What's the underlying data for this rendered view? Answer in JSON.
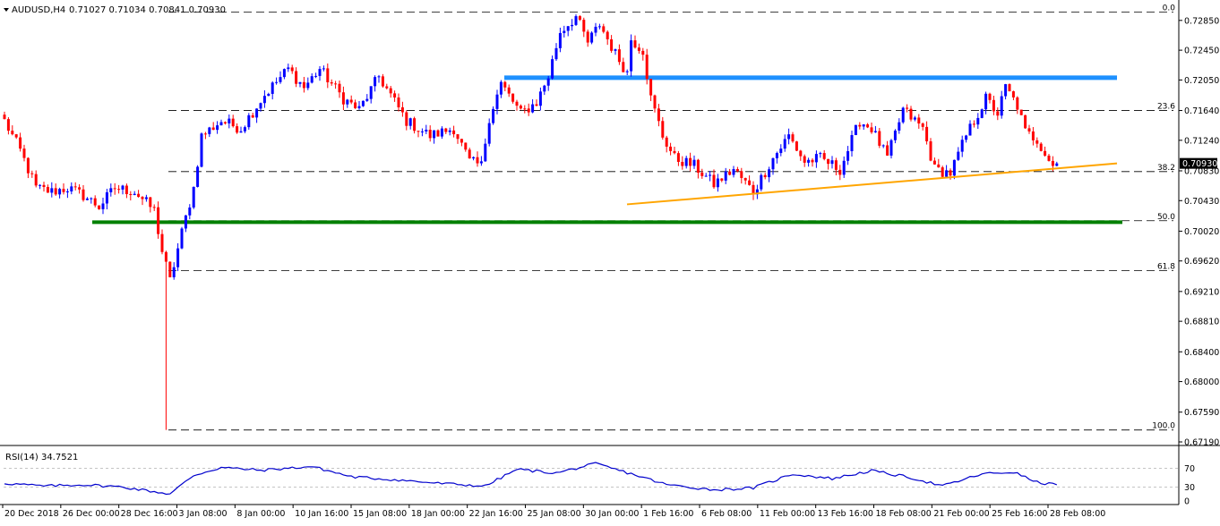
{
  "header": {
    "symbol": "AUDUSD,H4",
    "ohlc": "0.71027 0.71034 0.70841 0.70930"
  },
  "rsi_header": {
    "label": "RSI(14) 34.7521"
  },
  "colors": {
    "bull": "#0000ff",
    "bear": "#ff0000",
    "resistance_line": "#1e90ff",
    "support_line": "#008000",
    "trendline": "#ffa500",
    "rsi_line": "#0000cd",
    "price_label_bg": "#000000",
    "grid_dash": "#000000"
  },
  "chart_data": [
    {
      "type": "candlestick",
      "title": "AUDUSD,H4",
      "ylim": [
        0.6719,
        0.7304
      ],
      "y_ticks": [
        "0.72850",
        "0.72450",
        "0.72050",
        "0.71640",
        "0.71240",
        "0.70830",
        "0.70430",
        "0.70020",
        "0.69620",
        "0.69210",
        "0.68810",
        "0.68400",
        "0.68000",
        "0.67590",
        "0.67190"
      ],
      "x_labels": [
        "20 Dec 2018",
        "26 Dec 00:00",
        "28 Dec 16:00",
        "3 Jan 08:00",
        "8 Jan 00:00",
        "10 Jan 16:00",
        "15 Jan 08:00",
        "18 Jan 00:00",
        "22 Jan 16:00",
        "25 Jan 08:00",
        "30 Jan 00:00",
        "1 Feb 16:00",
        "6 Feb 08:00",
        "11 Feb 00:00",
        "13 Feb 16:00",
        "18 Feb 08:00",
        "21 Feb 00:00",
        "25 Feb 16:00",
        "28 Feb 08:00"
      ],
      "current_price_label": "0.70930",
      "fibonacci_levels": [
        {
          "label": "0.0",
          "price": 0.7296
        },
        {
          "label": "23.6",
          "price": 0.7164
        },
        {
          "label": "38.2",
          "price": 0.7082
        },
        {
          "label": "50.0",
          "price": 0.7016
        },
        {
          "label": "61.8",
          "price": 0.6949
        },
        {
          "label": "100.0",
          "price": 0.6735
        }
      ],
      "horizontal_lines": [
        {
          "name": "resistance",
          "price": 0.7208
        },
        {
          "name": "support",
          "price": 0.7014
        }
      ],
      "trendline": {
        "start": [
          0.7038
        ],
        "end": [
          0.7093
        ]
      },
      "anchors": [
        {
          "i": 0,
          "p": 0.715
        },
        {
          "i": 4,
          "p": 0.711
        },
        {
          "i": 8,
          "p": 0.706
        },
        {
          "i": 12,
          "p": 0.7055
        },
        {
          "i": 16,
          "p": 0.706
        },
        {
          "i": 20,
          "p": 0.705
        },
        {
          "i": 24,
          "p": 0.7035
        },
        {
          "i": 28,
          "p": 0.706
        },
        {
          "i": 33,
          "p": 0.7055
        },
        {
          "i": 38,
          "p": 0.703
        },
        {
          "i": 40,
          "p": 0.6975
        },
        {
          "i": 42,
          "p": 0.6935
        },
        {
          "i": 45,
          "p": 0.7
        },
        {
          "i": 48,
          "p": 0.706
        },
        {
          "i": 50,
          "p": 0.713
        },
        {
          "i": 55,
          "p": 0.715
        },
        {
          "i": 60,
          "p": 0.714
        },
        {
          "i": 66,
          "p": 0.7185
        },
        {
          "i": 72,
          "p": 0.722
        },
        {
          "i": 76,
          "p": 0.7195
        },
        {
          "i": 80,
          "p": 0.722
        },
        {
          "i": 86,
          "p": 0.718
        },
        {
          "i": 90,
          "p": 0.7165
        },
        {
          "i": 95,
          "p": 0.721
        },
        {
          "i": 102,
          "p": 0.715
        },
        {
          "i": 108,
          "p": 0.713
        },
        {
          "i": 114,
          "p": 0.714
        },
        {
          "i": 118,
          "p": 0.7095
        },
        {
          "i": 121,
          "p": 0.709
        },
        {
          "i": 123,
          "p": 0.7155
        },
        {
          "i": 126,
          "p": 0.72
        },
        {
          "i": 131,
          "p": 0.716
        },
        {
          "i": 135,
          "p": 0.7175
        },
        {
          "i": 138,
          "p": 0.721
        },
        {
          "i": 141,
          "p": 0.727
        },
        {
          "i": 145,
          "p": 0.729
        },
        {
          "i": 148,
          "p": 0.7255
        },
        {
          "i": 151,
          "p": 0.728
        },
        {
          "i": 155,
          "p": 0.724
        },
        {
          "i": 158,
          "p": 0.7215
        },
        {
          "i": 159,
          "p": 0.726
        },
        {
          "i": 162,
          "p": 0.7245
        },
        {
          "i": 164,
          "p": 0.718
        },
        {
          "i": 167,
          "p": 0.713
        },
        {
          "i": 170,
          "p": 0.71
        },
        {
          "i": 175,
          "p": 0.709
        },
        {
          "i": 180,
          "p": 0.7065
        },
        {
          "i": 185,
          "p": 0.7085
        },
        {
          "i": 190,
          "p": 0.7055
        },
        {
          "i": 195,
          "p": 0.71
        },
        {
          "i": 199,
          "p": 0.713
        },
        {
          "i": 203,
          "p": 0.7095
        },
        {
          "i": 207,
          "p": 0.71
        },
        {
          "i": 212,
          "p": 0.7085
        },
        {
          "i": 217,
          "p": 0.715
        },
        {
          "i": 220,
          "p": 0.714
        },
        {
          "i": 224,
          "p": 0.71
        },
        {
          "i": 228,
          "p": 0.7165
        },
        {
          "i": 233,
          "p": 0.714
        },
        {
          "i": 236,
          "p": 0.7085
        },
        {
          "i": 240,
          "p": 0.708
        },
        {
          "i": 244,
          "p": 0.713
        },
        {
          "i": 249,
          "p": 0.718
        },
        {
          "i": 252,
          "p": 0.716
        },
        {
          "i": 254,
          "p": 0.7195
        },
        {
          "i": 257,
          "p": 0.717
        },
        {
          "i": 259,
          "p": 0.7135
        },
        {
          "i": 262,
          "p": 0.7125
        },
        {
          "i": 266,
          "p": 0.709
        },
        {
          "i": 267,
          "p": 0.7093
        }
      ],
      "rsi": {
        "label": "RSI(14) 34.7521",
        "ylim": [
          0,
          100
        ],
        "levels": [
          70,
          30
        ],
        "tick_labels": [
          "70",
          "30",
          "0"
        ],
        "last_value": 34.7521,
        "anchors": [
          {
            "i": 0,
            "v": 38
          },
          {
            "i": 10,
            "v": 32
          },
          {
            "i": 20,
            "v": 35
          },
          {
            "i": 30,
            "v": 30
          },
          {
            "i": 42,
            "v": 15
          },
          {
            "i": 48,
            "v": 55
          },
          {
            "i": 55,
            "v": 72
          },
          {
            "i": 65,
            "v": 66
          },
          {
            "i": 78,
            "v": 74
          },
          {
            "i": 88,
            "v": 52
          },
          {
            "i": 100,
            "v": 45
          },
          {
            "i": 110,
            "v": 38
          },
          {
            "i": 122,
            "v": 32
          },
          {
            "i": 130,
            "v": 68
          },
          {
            "i": 140,
            "v": 60
          },
          {
            "i": 150,
            "v": 80
          },
          {
            "i": 160,
            "v": 56
          },
          {
            "i": 168,
            "v": 35
          },
          {
            "i": 180,
            "v": 24
          },
          {
            "i": 190,
            "v": 28
          },
          {
            "i": 200,
            "v": 58
          },
          {
            "i": 210,
            "v": 48
          },
          {
            "i": 220,
            "v": 65
          },
          {
            "i": 230,
            "v": 50
          },
          {
            "i": 238,
            "v": 32
          },
          {
            "i": 248,
            "v": 58
          },
          {
            "i": 256,
            "v": 62
          },
          {
            "i": 262,
            "v": 40
          },
          {
            "i": 267,
            "v": 34.75
          }
        ]
      }
    }
  ]
}
